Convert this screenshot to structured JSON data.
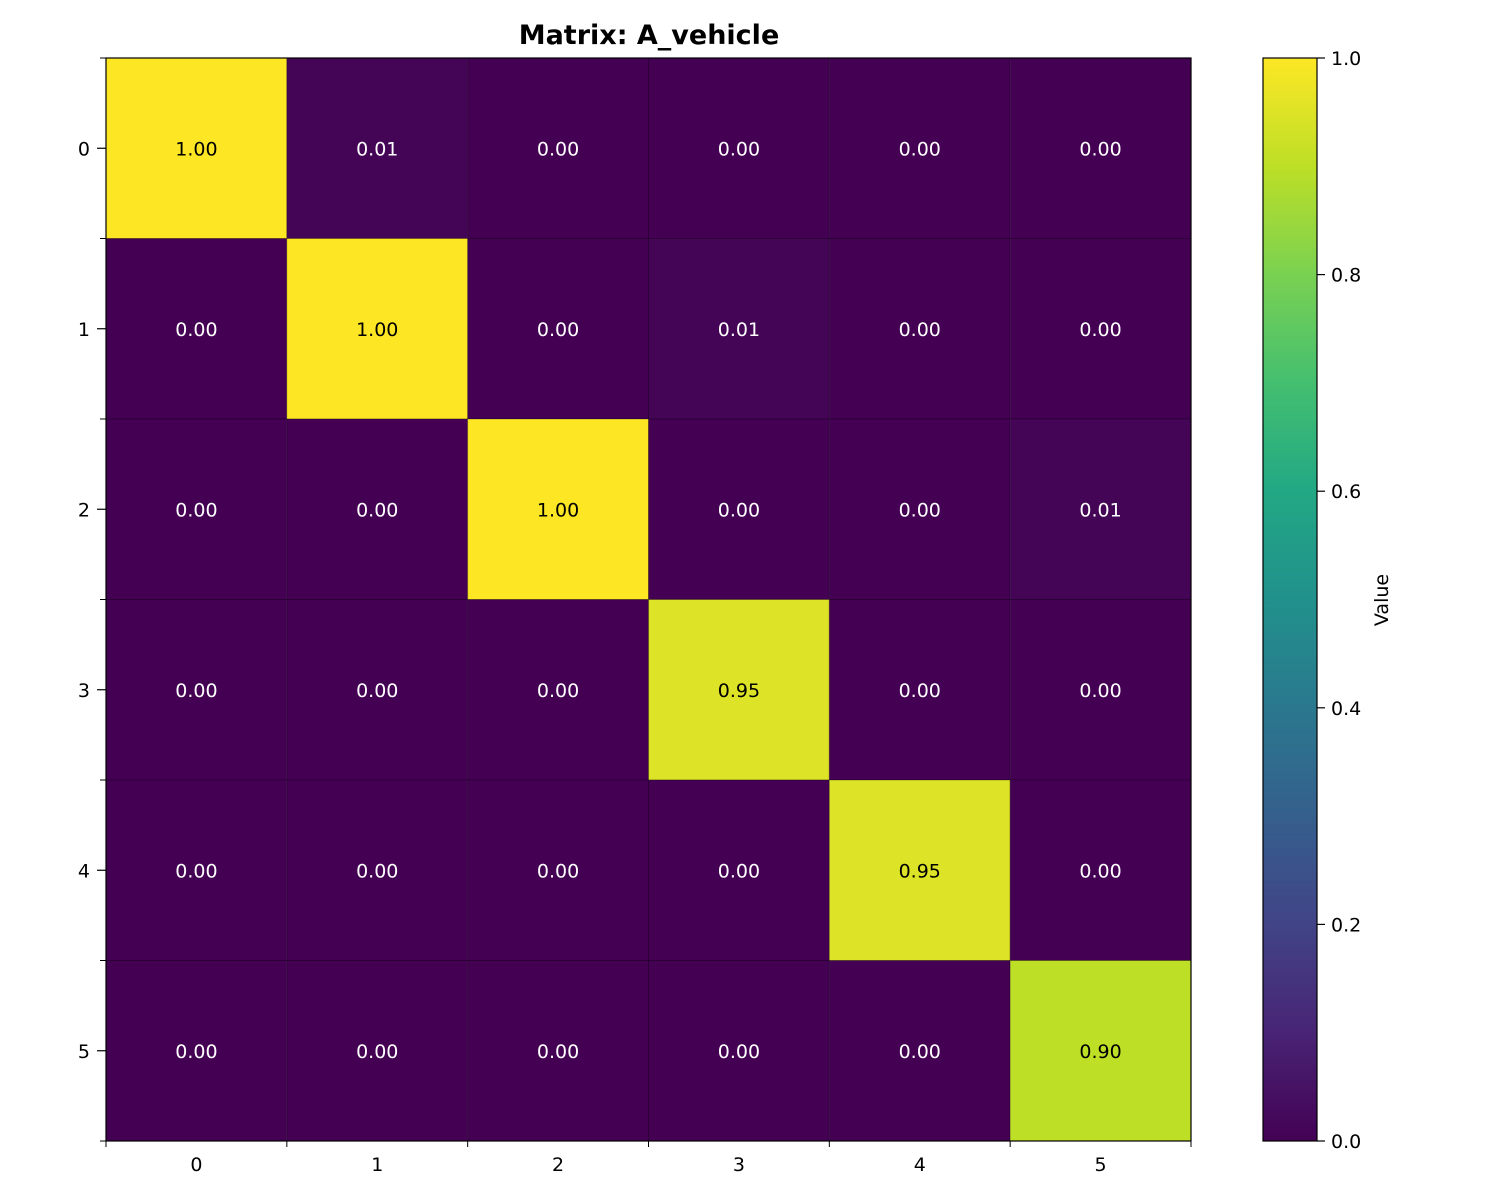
{
  "chart_data": {
    "type": "heatmap",
    "title": "Matrix: A_vehicle",
    "x_categories": [
      "0",
      "1",
      "2",
      "3",
      "4",
      "5"
    ],
    "y_categories": [
      "0",
      "1",
      "2",
      "3",
      "4",
      "5"
    ],
    "values": [
      [
        1.0,
        0.01,
        0.0,
        0.0,
        0.0,
        0.0
      ],
      [
        0.0,
        1.0,
        0.0,
        0.01,
        0.0,
        0.0
      ],
      [
        0.0,
        0.0,
        1.0,
        0.0,
        0.0,
        0.01
      ],
      [
        0.0,
        0.0,
        0.0,
        0.95,
        0.0,
        0.0
      ],
      [
        0.0,
        0.0,
        0.0,
        0.0,
        0.95,
        0.0
      ],
      [
        0.0,
        0.0,
        0.0,
        0.0,
        0.0,
        0.9
      ]
    ],
    "value_format": "2 decimals",
    "colormap": "viridis",
    "colorbar": {
      "label": "Value",
      "range": [
        0.0,
        1.0
      ],
      "ticks": [
        0.0,
        0.2,
        0.4,
        0.6,
        0.8,
        1.0
      ],
      "tick_labels": [
        "0.0",
        "0.2",
        "0.4",
        "0.6",
        "0.8",
        "1.0"
      ],
      "placement": "right"
    },
    "grid": true
  }
}
